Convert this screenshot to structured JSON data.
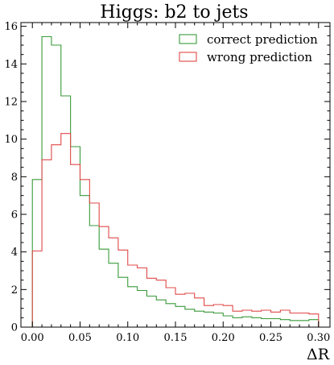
{
  "chart_data": {
    "type": "histogram",
    "title": "Higgs: b2 to jets",
    "xlabel": "ΔR",
    "ylabel": "",
    "xlim": [
      -0.012,
      0.312
    ],
    "ylim": [
      0,
      16.2
    ],
    "grid": false,
    "legend_position": "top-right",
    "x_ticks": [
      0.0,
      0.05,
      0.1,
      0.15,
      0.2,
      0.25,
      0.3
    ],
    "x_tick_labels": [
      "0.00",
      "0.05",
      "0.10",
      "0.15",
      "0.20",
      "0.25",
      "0.30"
    ],
    "y_ticks": [
      0,
      2,
      4,
      6,
      8,
      10,
      12,
      14,
      16
    ],
    "y_tick_labels": [
      "0",
      "2",
      "4",
      "6",
      "8",
      "10",
      "12",
      "14",
      "16"
    ],
    "bin_edges": [
      0.0,
      0.01,
      0.02,
      0.03,
      0.04,
      0.05,
      0.06,
      0.07,
      0.08,
      0.09,
      0.1,
      0.11,
      0.12,
      0.13,
      0.14,
      0.15,
      0.16,
      0.17,
      0.18,
      0.19,
      0.2,
      0.21,
      0.22,
      0.23,
      0.24,
      0.25,
      0.26,
      0.27,
      0.28,
      0.29,
      0.3
    ],
    "series": [
      {
        "name": "correct prediction",
        "color": "#3a9a3a",
        "values": [
          7.85,
          15.45,
          15.0,
          12.3,
          9.6,
          7.0,
          5.4,
          4.15,
          3.4,
          2.65,
          2.15,
          1.95,
          1.65,
          1.45,
          1.25,
          1.1,
          0.95,
          0.85,
          0.8,
          0.75,
          0.6,
          0.5,
          0.55,
          0.5,
          0.45,
          0.45,
          0.4,
          0.35,
          0.35,
          0.4
        ]
      },
      {
        "name": "wrong prediction",
        "color": "#e04848",
        "values": [
          4.05,
          8.9,
          9.7,
          10.3,
          8.65,
          7.85,
          6.6,
          5.35,
          4.75,
          4.1,
          3.3,
          3.15,
          2.6,
          2.5,
          2.1,
          1.75,
          1.8,
          1.55,
          1.15,
          1.2,
          1.15,
          0.85,
          0.9,
          0.85,
          0.9,
          0.8,
          0.9,
          0.75,
          0.75,
          0.7
        ]
      }
    ]
  }
}
